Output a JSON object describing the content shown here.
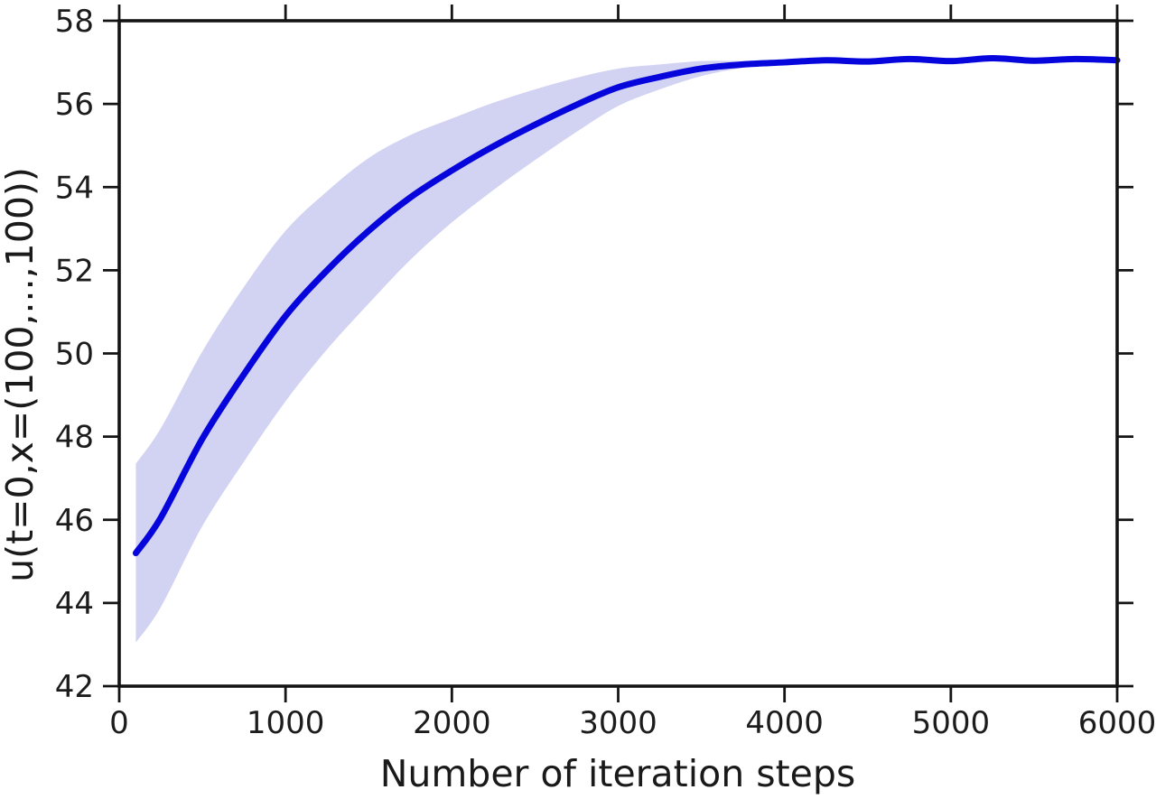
{
  "figure": {
    "title": "",
    "background": "#ffffff"
  },
  "colors": {
    "mean_line": "#0606dc",
    "confidence_band": "#d2d2f3",
    "axis": "#141414",
    "text": "#1c1c1c"
  },
  "chart_data": {
    "type": "line",
    "title": "",
    "xlabel": "Number of iteration steps",
    "ylabel": "u(t=0,x=(100,...,100))",
    "xlim": [
      0,
      6000
    ],
    "ylim": [
      42,
      58
    ],
    "xticks": [
      0,
      1000,
      2000,
      3000,
      4000,
      5000,
      6000
    ],
    "yticks": [
      42,
      44,
      46,
      48,
      50,
      52,
      54,
      56,
      58
    ],
    "grid": false,
    "legend": null,
    "x": [
      100,
      250,
      500,
      750,
      1000,
      1250,
      1500,
      1750,
      2000,
      2250,
      2500,
      2750,
      3000,
      3250,
      3500,
      3750,
      4000,
      4250,
      4500,
      4750,
      5000,
      5250,
      5500,
      5750,
      6000
    ],
    "series": [
      {
        "name": "mean",
        "values": [
          45.2,
          46.05,
          47.95,
          49.5,
          50.9,
          52.0,
          52.95,
          53.75,
          54.4,
          54.98,
          55.5,
          55.98,
          56.4,
          56.65,
          56.85,
          56.95,
          57.0,
          57.05,
          57.02,
          57.08,
          57.03,
          57.1,
          57.04,
          57.08,
          57.05
        ]
      },
      {
        "name": "band_lower",
        "values": [
          43.05,
          43.9,
          45.85,
          47.4,
          48.85,
          50.1,
          51.2,
          52.25,
          53.15,
          53.93,
          54.65,
          55.33,
          55.95,
          56.35,
          56.67,
          56.87,
          57.0
        ]
      },
      {
        "name": "band_upper",
        "values": [
          47.35,
          48.2,
          50.05,
          51.6,
          52.95,
          53.9,
          54.7,
          55.25,
          55.65,
          56.03,
          56.35,
          56.63,
          56.85,
          56.95,
          57.03,
          57.03,
          57.0
        ]
      }
    ],
    "band_ends_at_x": 4000
  }
}
